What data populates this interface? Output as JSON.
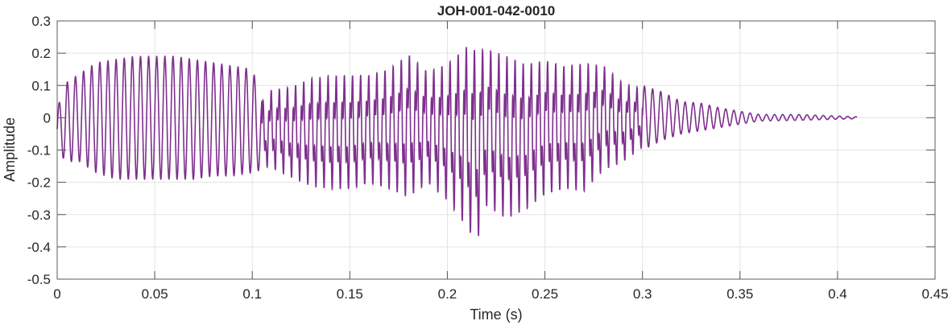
{
  "chart_data": {
    "type": "line",
    "title": "JOH-001-042-0010",
    "xlabel": "Time (s)",
    "ylabel": "Amplitude",
    "xlim": [
      0,
      0.45
    ],
    "ylim": [
      -0.5,
      0.3
    ],
    "xticks": [
      0,
      0.05,
      0.1,
      0.15,
      0.2,
      0.25,
      0.3,
      0.35,
      0.4,
      0.45
    ],
    "xtick_labels": [
      "0",
      "0.05",
      "0.1",
      "0.15",
      "0.2",
      "0.25",
      "0.3",
      "0.35",
      "0.4",
      "0.45"
    ],
    "yticks": [
      0.3,
      0.2,
      0.1,
      0,
      -0.1,
      -0.2,
      -0.3,
      -0.4,
      -0.5
    ],
    "ytick_labels": [
      "0.3",
      "0.2",
      "0.1",
      "0",
      "-0.1",
      "-0.2",
      "-0.3",
      "-0.4",
      "-0.5"
    ],
    "grid": true,
    "line_color": "#7E2F8E",
    "series": [
      {
        "envelope": {
          "t": [
            0,
            0.005,
            0.01,
            0.02,
            0.03,
            0.04,
            0.05,
            0.06,
            0.07,
            0.08,
            0.09,
            0.1,
            0.105,
            0.11,
            0.12,
            0.13,
            0.14,
            0.15,
            0.16,
            0.17,
            0.18,
            0.19,
            0.2,
            0.21,
            0.215,
            0.22,
            0.23,
            0.24,
            0.25,
            0.26,
            0.27,
            0.28,
            0.29,
            0.3,
            0.31,
            0.32,
            0.33,
            0.34,
            0.35,
            0.36,
            0.38,
            0.41
          ],
          "max": [
            0.03,
            0.11,
            0.13,
            0.17,
            0.18,
            0.19,
            0.19,
            0.19,
            0.18,
            0.17,
            0.16,
            0.15,
            0.06,
            0.1,
            0.11,
            0.14,
            0.15,
            0.15,
            0.15,
            0.17,
            0.22,
            0.16,
            0.19,
            0.25,
            0.24,
            0.24,
            0.22,
            0.19,
            0.2,
            0.18,
            0.19,
            0.18,
            0.12,
            0.1,
            0.08,
            0.05,
            0.045,
            0.03,
            0.02,
            0.01,
            0.01,
            0.003
          ],
          "min": [
            -0.1,
            -0.14,
            -0.13,
            -0.17,
            -0.19,
            -0.19,
            -0.19,
            -0.19,
            -0.19,
            -0.18,
            -0.18,
            -0.17,
            -0.16,
            -0.17,
            -0.2,
            -0.23,
            -0.24,
            -0.24,
            -0.22,
            -0.24,
            -0.27,
            -0.22,
            -0.28,
            -0.37,
            -0.42,
            -0.3,
            -0.34,
            -0.31,
            -0.26,
            -0.24,
            -0.25,
            -0.18,
            -0.15,
            -0.1,
            -0.07,
            -0.05,
            -0.04,
            -0.03,
            -0.02,
            -0.01,
            -0.008,
            -0.003
          ]
        }
      }
    ]
  }
}
